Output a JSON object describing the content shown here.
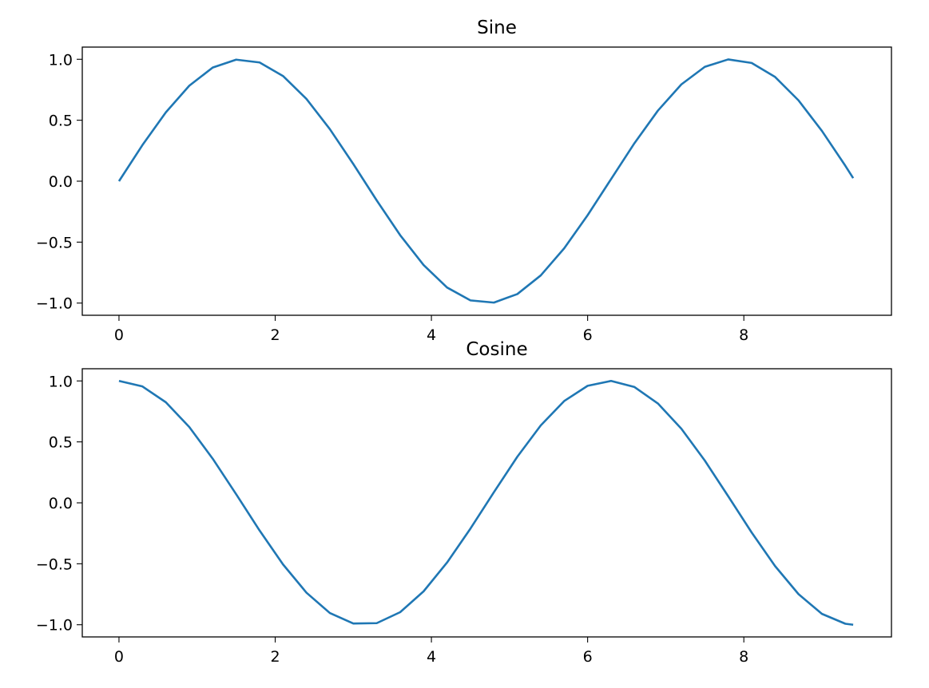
{
  "chart_data": [
    {
      "type": "line",
      "title": "Sine",
      "xlabel": "",
      "ylabel": "",
      "xlim": [
        -0.47,
        9.89
      ],
      "ylim": [
        -1.1,
        1.1
      ],
      "xticks": [
        0,
        2,
        4,
        6,
        8
      ],
      "xtick_labels": [
        "0",
        "2",
        "4",
        "6",
        "8"
      ],
      "yticks": [
        1.0,
        0.5,
        0.0,
        -0.5,
        -1.0
      ],
      "ytick_labels": [
        "1.0",
        "0.5",
        "0.0",
        "−0.5",
        "−1.0"
      ],
      "grid": false,
      "legend": false,
      "series": [
        {
          "color": "#1f77b4",
          "x": [
            0,
            0.3,
            0.6,
            0.9,
            1.2,
            1.5,
            1.8,
            2.1,
            2.4,
            2.7,
            3.0,
            3.3,
            3.6,
            3.9,
            4.2,
            4.5,
            4.8,
            5.1,
            5.4,
            5.7,
            6.0,
            6.3,
            6.6,
            6.9,
            7.2,
            7.5,
            7.8,
            8.1,
            8.4,
            8.7,
            9.0,
            9.3,
            9.4
          ],
          "y": [
            0.0,
            0.296,
            0.565,
            0.783,
            0.932,
            0.997,
            0.974,
            0.863,
            0.675,
            0.427,
            0.141,
            -0.158,
            -0.443,
            -0.688,
            -0.872,
            -0.978,
            -0.996,
            -0.926,
            -0.773,
            -0.551,
            -0.279,
            0.017,
            0.312,
            0.579,
            0.794,
            0.938,
            0.999,
            0.97,
            0.855,
            0.663,
            0.412,
            0.126,
            0.025
          ]
        }
      ]
    },
    {
      "type": "line",
      "title": "Cosine",
      "xlabel": "",
      "ylabel": "",
      "xlim": [
        -0.47,
        9.89
      ],
      "ylim": [
        -1.1,
        1.1
      ],
      "xticks": [
        0,
        2,
        4,
        6,
        8
      ],
      "xtick_labels": [
        "0",
        "2",
        "4",
        "6",
        "8"
      ],
      "yticks": [
        1.0,
        0.5,
        0.0,
        -0.5,
        -1.0
      ],
      "ytick_labels": [
        "1.0",
        "0.5",
        "0.0",
        "−0.5",
        "−1.0"
      ],
      "grid": false,
      "legend": false,
      "series": [
        {
          "color": "#1f77b4",
          "x": [
            0,
            0.3,
            0.6,
            0.9,
            1.2,
            1.5,
            1.8,
            2.1,
            2.4,
            2.7,
            3.0,
            3.3,
            3.6,
            3.9,
            4.2,
            4.5,
            4.8,
            5.1,
            5.4,
            5.7,
            6.0,
            6.3,
            6.6,
            6.9,
            7.2,
            7.5,
            7.8,
            8.1,
            8.4,
            8.7,
            9.0,
            9.3,
            9.4
          ],
          "y": [
            1.0,
            0.955,
            0.825,
            0.622,
            0.362,
            0.071,
            -0.227,
            -0.505,
            -0.737,
            -0.904,
            -0.99,
            -0.987,
            -0.897,
            -0.726,
            -0.49,
            -0.211,
            0.087,
            0.378,
            0.635,
            0.835,
            0.96,
            1.0,
            0.95,
            0.815,
            0.608,
            0.347,
            0.054,
            -0.243,
            -0.519,
            -0.749,
            -0.911,
            -0.992,
            -1.0
          ]
        }
      ]
    }
  ]
}
